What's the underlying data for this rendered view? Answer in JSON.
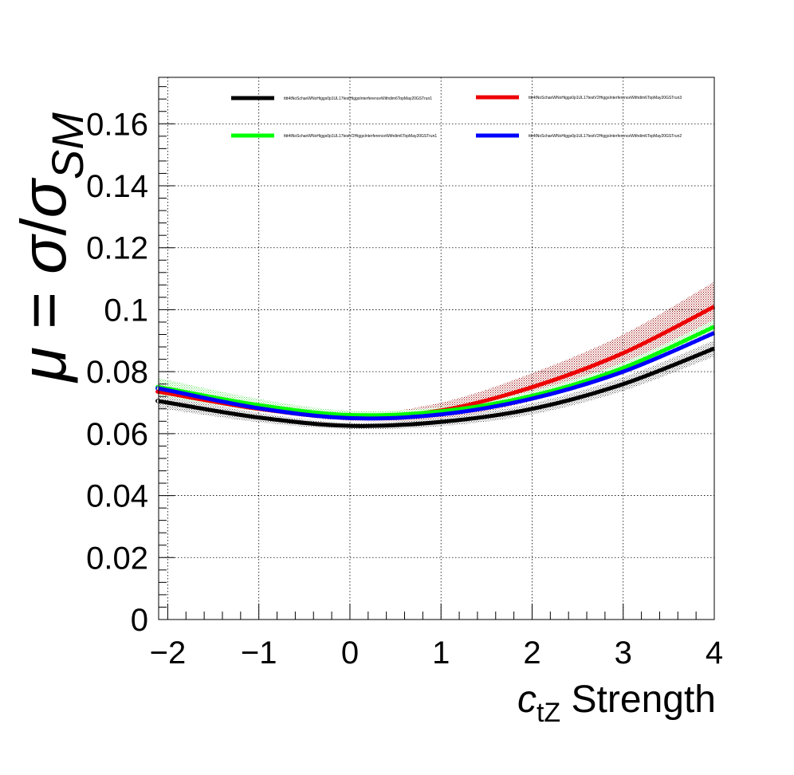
{
  "chart_data": {
    "type": "line",
    "title": "",
    "xlabel": {
      "symbol": "c",
      "subscript": "tZ",
      "text": " Strength"
    },
    "ylabel": {
      "mu": "μ",
      "eq": " = ",
      "sigma": "σ",
      "slash": "/",
      "sigma2": "σ",
      "subscript": "SM"
    },
    "xlim": [
      -2.1,
      4.0
    ],
    "ylim": [
      0,
      0.175
    ],
    "x_ticks": [
      -2,
      -1,
      0,
      1,
      2,
      3,
      4
    ],
    "x_tick_labels": [
      "−2",
      "−1",
      "0",
      "1",
      "2",
      "3",
      "4"
    ],
    "y_ticks": [
      0,
      0.02,
      0.04,
      0.06,
      0.08,
      0.1,
      0.12,
      0.14,
      0.16
    ],
    "y_tick_labels": [
      "0",
      "0.02",
      "0.04",
      "0.06",
      "0.08",
      "0.1",
      "0.12",
      "0.14",
      "0.16"
    ],
    "grid": true,
    "legend_position": "top",
    "series": [
      {
        "name": "tttt4tNoSchanWNoHiggs0p1UL17testHiggsInterferenceWithdim6TopMay20GSTrun1",
        "color": "#000000",
        "band_color": "#555555",
        "x": [
          -2.1,
          -2,
          -1,
          0,
          1,
          2,
          3,
          4
        ],
        "y": [
          0.0705,
          0.07,
          0.0652,
          0.0625,
          0.0638,
          0.068,
          0.076,
          0.0875
        ],
        "band_halfwidth": [
          0.0022,
          0.0022,
          0.0015,
          0.001,
          0.0014,
          0.0018,
          0.0022,
          0.0026
        ]
      },
      {
        "name": "tttt4tNoSchanWNoHiggs0p1UL17testV2HiggsInterferenceWithdim6TopMay20GSTrun3",
        "color": "#ee0000",
        "band_color": "#990000",
        "x": [
          -2.1,
          -2,
          -1,
          0,
          1,
          2,
          3,
          4
        ],
        "y": [
          0.0735,
          0.073,
          0.068,
          0.0652,
          0.0675,
          0.075,
          0.086,
          0.101
        ],
        "band_halfwidth": [
          0.001,
          0.001,
          0.0007,
          0.001,
          0.0025,
          0.0045,
          0.006,
          0.008
        ]
      },
      {
        "name": "tttt4tNoSchanWNoHiggs0p1UL17testV2HiggsInterferenceWithdim6TopMay20GSTrun1",
        "color": "#00ff00",
        "band_color": "#55dd55",
        "x": [
          -2.1,
          -2,
          -1,
          0,
          1,
          2,
          3,
          4
        ],
        "y": [
          0.075,
          0.0745,
          0.0692,
          0.066,
          0.0672,
          0.0722,
          0.0812,
          0.0945
        ],
        "band_halfwidth": [
          0.0028,
          0.0028,
          0.002,
          0.0014,
          0.0014,
          0.0016,
          0.0018,
          0.0022
        ]
      },
      {
        "name": "tttt4tNoSchanWNoHiggs0p1UL17testV2HiggsInterferenceWithdim6TopMay20GSTrun2",
        "color": "#0000ff",
        "band_color": "#6666ff",
        "x": [
          -2.1,
          -2,
          -1,
          0,
          1,
          2,
          3,
          4
        ],
        "y": [
          0.0745,
          0.074,
          0.0682,
          0.065,
          0.0662,
          0.0713,
          0.08,
          0.0925
        ],
        "band_halfwidth": [
          0.0008,
          0.0008,
          0.0006,
          0.0005,
          0.0005,
          0.0006,
          0.0007,
          0.0008
        ]
      }
    ]
  }
}
